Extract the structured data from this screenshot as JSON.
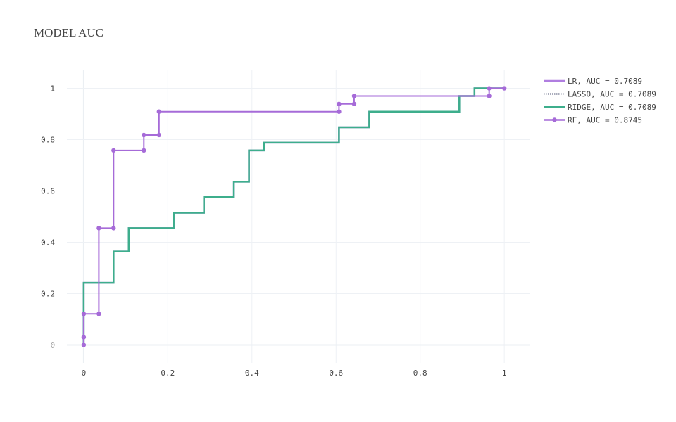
{
  "chart_data": {
    "type": "line",
    "title": "MODEL AUC",
    "xlabel": "",
    "ylabel": "",
    "xlim": [
      -0.04,
      1.06
    ],
    "ylim": [
      -0.07,
      1.07
    ],
    "xticks": [
      0,
      0.2,
      0.4,
      0.6,
      0.8,
      1
    ],
    "yticks": [
      0,
      0.2,
      0.4,
      0.6,
      0.8,
      1
    ],
    "xtick_labels": [
      "0",
      "0.2",
      "0.4",
      "0.6",
      "0.8",
      "1"
    ],
    "ytick_labels": [
      "0",
      "0.2",
      "0.4",
      "0.6",
      "0.8",
      "1"
    ],
    "grid": true,
    "legend_position": "top-right",
    "series": [
      {
        "name": "LR, AUC = 0.7089",
        "color": "#b07ee0",
        "style": "line",
        "x": [
          0,
          0,
          0.036,
          0.036,
          0.071,
          0.071,
          0.107,
          0.107,
          0.214,
          0.214,
          0.286,
          0.286,
          0.357,
          0.357,
          0.393,
          0.393,
          0.429,
          0.429,
          0.607,
          0.607,
          0.679,
          0.679,
          0.893,
          0.893,
          0.929,
          0.929,
          1
        ],
        "y": [
          0,
          0.242,
          0.242,
          0.242,
          0.242,
          0.364,
          0.364,
          0.455,
          0.455,
          0.515,
          0.515,
          0.576,
          0.576,
          0.636,
          0.636,
          0.758,
          0.758,
          0.788,
          0.788,
          0.848,
          0.848,
          0.909,
          0.909,
          0.97,
          0.97,
          1,
          1
        ]
      },
      {
        "name": "LASSO, AUC = 0.7089",
        "color": "#555a78",
        "style": "dot",
        "x": [
          0,
          0,
          0.036,
          0.036,
          0.071,
          0.071,
          0.107,
          0.107,
          0.214,
          0.214,
          0.286,
          0.286,
          0.357,
          0.357,
          0.393,
          0.393,
          0.429,
          0.429,
          0.607,
          0.607,
          0.679,
          0.679,
          0.893,
          0.893,
          0.929,
          0.929,
          1
        ],
        "y": [
          0,
          0.242,
          0.242,
          0.242,
          0.242,
          0.364,
          0.364,
          0.455,
          0.455,
          0.515,
          0.515,
          0.576,
          0.576,
          0.636,
          0.636,
          0.758,
          0.758,
          0.788,
          0.788,
          0.848,
          0.848,
          0.909,
          0.909,
          0.97,
          0.97,
          1,
          1
        ]
      },
      {
        "name": "RIDGE, AUC = 0.7089",
        "color": "#3dae8c",
        "style": "line",
        "x": [
          0,
          0,
          0.036,
          0.036,
          0.071,
          0.071,
          0.107,
          0.107,
          0.214,
          0.214,
          0.286,
          0.286,
          0.357,
          0.357,
          0.393,
          0.393,
          0.429,
          0.429,
          0.607,
          0.607,
          0.679,
          0.679,
          0.893,
          0.893,
          0.929,
          0.929,
          1
        ],
        "y": [
          0,
          0.242,
          0.242,
          0.242,
          0.242,
          0.364,
          0.364,
          0.455,
          0.455,
          0.515,
          0.515,
          0.576,
          0.576,
          0.636,
          0.636,
          0.758,
          0.758,
          0.788,
          0.788,
          0.848,
          0.848,
          0.909,
          0.909,
          0.97,
          0.97,
          1,
          1
        ]
      },
      {
        "name": "RF, AUC = 0.8745",
        "color": "#a66bd8",
        "style": "lines+markers",
        "x": [
          0,
          0,
          0,
          0.036,
          0.036,
          0.071,
          0.071,
          0.143,
          0.143,
          0.179,
          0.179,
          0.607,
          0.607,
          0.643,
          0.643,
          0.964,
          0.964,
          1
        ],
        "y": [
          0,
          0.03,
          0.121,
          0.121,
          0.455,
          0.455,
          0.758,
          0.758,
          0.818,
          0.818,
          0.909,
          0.909,
          0.939,
          0.939,
          0.97,
          0.97,
          1,
          1
        ]
      }
    ]
  }
}
